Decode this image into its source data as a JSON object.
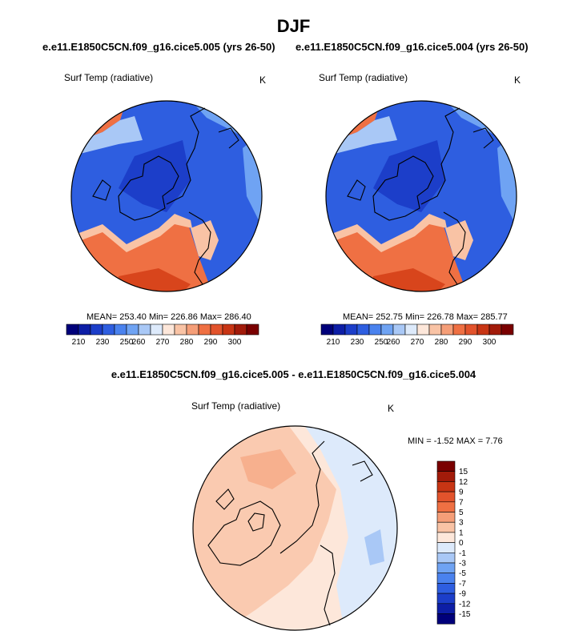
{
  "title": "DJF",
  "colors": {
    "cold_dark": "#1c3ec9",
    "cold": "#2e5ee0",
    "cold_mid": "#4a82ee",
    "cold_light": "#92b8f4",
    "ice": "#d8e8fb",
    "warm_pale": "#fce2d2",
    "warm_light": "#f8b992",
    "warm": "#ef7043",
    "warm_dark": "#d8451c",
    "land_outline": "#000000"
  },
  "chart_data": [
    {
      "type": "heatmap",
      "panel": "top-left",
      "title": "e.e11.E1850C5CN.f09_g16.cice5.005 (yrs 26-50)",
      "variable_label": "Surf Temp (radiative)",
      "units": "K",
      "projection": "polar stereographic",
      "stats": {
        "mean": "253.40",
        "min": "226.86",
        "max": "286.40"
      },
      "stats_text": "MEAN= 253.40  Min= 226.86  Max= 286.40",
      "colorbar": {
        "orientation": "horizontal",
        "tick_labels": [
          "210",
          "230",
          "250",
          "260",
          "270",
          "280",
          "290",
          "300"
        ],
        "colors": [
          "#00007a",
          "#0d1ea6",
          "#1c3ec9",
          "#2e5ee0",
          "#4a82ee",
          "#6fa3f3",
          "#a9c8f6",
          "#ddeafb",
          "#fde7da",
          "#f9c3a5",
          "#f59e78",
          "#ef7043",
          "#e2532c",
          "#c83514",
          "#a21b0a",
          "#7a0000"
        ]
      }
    },
    {
      "type": "heatmap",
      "panel": "top-right",
      "title": "e.e11.E1850C5CN.f09_g16.cice5.004 (yrs 26-50)",
      "variable_label": "Surf Temp (radiative)",
      "units": "K",
      "projection": "polar stereographic",
      "stats": {
        "mean": "252.75",
        "min": "226.78",
        "max": "285.77"
      },
      "stats_text": "MEAN= 252.75  Min= 226.78  Max= 285.77",
      "colorbar": {
        "orientation": "horizontal",
        "tick_labels": [
          "210",
          "230",
          "250",
          "260",
          "270",
          "280",
          "290",
          "300"
        ],
        "colors": [
          "#00007a",
          "#0d1ea6",
          "#1c3ec9",
          "#2e5ee0",
          "#4a82ee",
          "#6fa3f3",
          "#a9c8f6",
          "#ddeafb",
          "#fde7da",
          "#f9c3a5",
          "#f59e78",
          "#ef7043",
          "#e2532c",
          "#c83514",
          "#a21b0a",
          "#7a0000"
        ]
      }
    },
    {
      "type": "heatmap",
      "panel": "bottom",
      "title": "e.e11.E1850C5CN.f09_g16.cice5.005 - e.e11.E1850C5CN.f09_g16.cice5.004",
      "variable_label": "Surf Temp (radiative)",
      "units": "K",
      "projection": "polar stereographic",
      "stats": {
        "min": "-1.52",
        "max": "7.76"
      },
      "stats_text": "MIN =  -1.52 MAX =   7.76",
      "colorbar": {
        "orientation": "vertical",
        "tick_labels": [
          "15",
          "12",
          "9",
          "7",
          "5",
          "3",
          "1",
          "0",
          "-1",
          "-3",
          "-5",
          "-7",
          "-9",
          "-12",
          "-15"
        ],
        "colors": [
          "#7a0000",
          "#a21b0a",
          "#c83514",
          "#e2532c",
          "#ef7043",
          "#f59e78",
          "#f9c3a5",
          "#fde7da",
          "#ddeafb",
          "#a9c8f6",
          "#6fa3f3",
          "#4a82ee",
          "#2e5ee0",
          "#1c3ec9",
          "#0d1ea6",
          "#00007a"
        ]
      }
    }
  ]
}
